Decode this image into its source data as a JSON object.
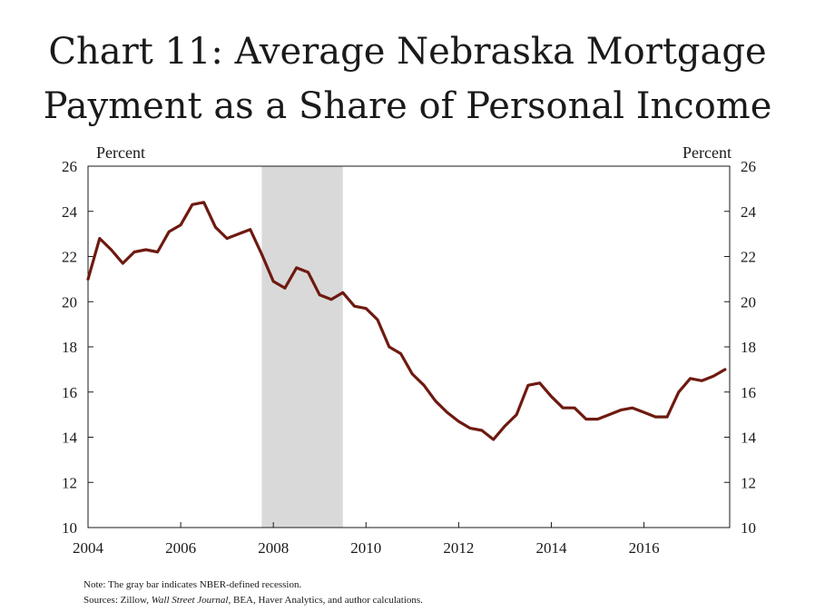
{
  "title_line1": "Chart 11: Average Nebraska Mortgage",
  "title_line2": "Payment as a Share of Personal Income",
  "note": {
    "line1": "Note: The gray bar indicates NBER-defined recession.",
    "line2_prefix": "Sources: Zillow, ",
    "line2_italic": "Wall Street Journal",
    "line2_suffix": ", BEA, Haver Analytics, and author calculations."
  },
  "colors": {
    "series": "#6e1a10",
    "recession": "#d9d9d9",
    "axis": "#1a1a1a"
  },
  "chart_data": {
    "type": "line",
    "left_unit_label": "Percent",
    "right_unit_label": "Percent",
    "xlim": [
      2004.0,
      2017.85
    ],
    "ylim": [
      10,
      26
    ],
    "y_ticks": [
      10,
      12,
      14,
      16,
      18,
      20,
      22,
      24,
      26
    ],
    "x_ticks": [
      2004,
      2006,
      2008,
      2010,
      2012,
      2014,
      2016
    ],
    "x_tick_labels": [
      "2004",
      "2006",
      "2008",
      "2010",
      "2012",
      "2014",
      "2016"
    ],
    "recession_band": [
      2007.75,
      2009.5
    ],
    "grid": false,
    "series": [
      {
        "x": [
          2004.0,
          2004.25,
          2004.5,
          2004.75,
          2005.0,
          2005.25,
          2005.5,
          2005.75,
          2006.0,
          2006.25,
          2006.5,
          2006.75,
          2007.0,
          2007.25,
          2007.5,
          2007.75,
          2008.0,
          2008.25,
          2008.5,
          2008.75,
          2009.0,
          2009.25,
          2009.5,
          2009.75,
          2010.0,
          2010.25,
          2010.5,
          2010.75,
          2011.0,
          2011.25,
          2011.5,
          2011.75,
          2012.0,
          2012.25,
          2012.5,
          2012.75,
          2013.0,
          2013.25,
          2013.5,
          2013.75,
          2014.0,
          2014.25,
          2014.5,
          2014.75,
          2015.0,
          2015.25,
          2015.5,
          2015.75,
          2016.0,
          2016.25,
          2016.5,
          2016.75,
          2017.0,
          2017.25,
          2017.5,
          2017.75
        ],
        "values": [
          21.0,
          22.8,
          22.3,
          21.7,
          22.2,
          22.3,
          22.2,
          23.1,
          23.4,
          24.3,
          24.4,
          23.3,
          22.8,
          23.0,
          23.2,
          22.1,
          20.9,
          20.6,
          21.5,
          21.3,
          20.3,
          20.1,
          20.4,
          19.8,
          19.7,
          19.2,
          18.0,
          17.7,
          16.8,
          16.3,
          15.6,
          15.1,
          14.7,
          14.4,
          14.3,
          13.9,
          14.5,
          15.0,
          16.3,
          16.4,
          15.8,
          15.3,
          15.3,
          14.8,
          14.8,
          15.0,
          15.2,
          15.3,
          15.1,
          14.9,
          14.9,
          16.0,
          16.6,
          16.5,
          16.7,
          17.0
        ]
      }
    ]
  }
}
